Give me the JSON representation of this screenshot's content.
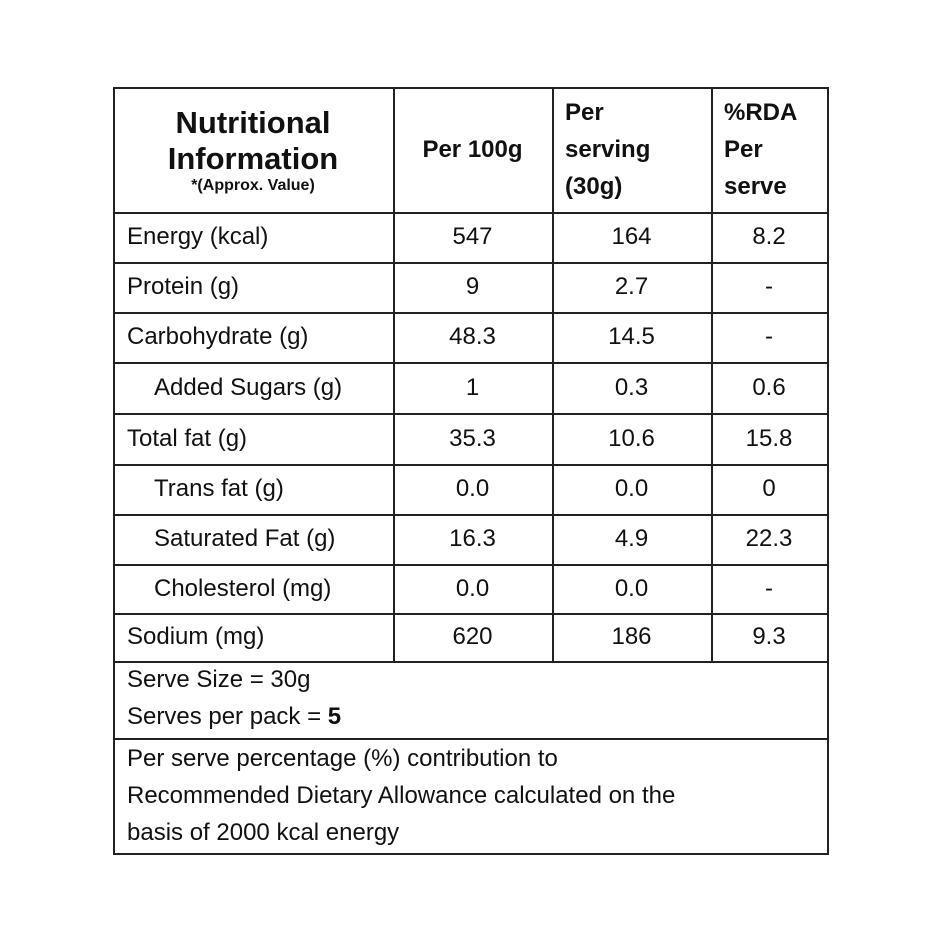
{
  "table": {
    "header": {
      "title": "Nutritional Information",
      "note": "*(Approx. Value)",
      "columns": [
        [
          "Per 100g"
        ],
        [
          "Per",
          "serving",
          "(30g)"
        ],
        [
          "%RDA",
          "Per",
          "serve"
        ]
      ]
    },
    "rows": [
      {
        "label": "Energy (kcal)",
        "cells": [
          "547",
          "164",
          "8.2"
        ]
      },
      {
        "label": "Protein (g)",
        "cells": [
          "9",
          "2.7",
          "-"
        ]
      },
      {
        "label": "Carbohydrate (g)",
        "cells": [
          "48.3",
          "14.5",
          "-"
        ]
      },
      {
        "label": "Added Sugars (g)",
        "cells": [
          "1",
          "0.3",
          "0.6"
        ],
        "sub": true
      },
      {
        "label": "Total fat (g)",
        "cells": [
          "35.3",
          "10.6",
          "15.8"
        ]
      },
      {
        "label": "Trans fat (g)",
        "cells": [
          "0.0",
          "0.0",
          "0"
        ],
        "sub": true
      },
      {
        "label": "Saturated Fat (g)",
        "cells": [
          "16.3",
          "4.9",
          "22.3"
        ],
        "sub": true
      },
      {
        "label": "Cholesterol (mg)",
        "cells": [
          "0.0",
          "0.0",
          "-"
        ],
        "sub": true
      },
      {
        "label": "Sodium (mg)",
        "cells": [
          "620",
          "186",
          "9.3"
        ]
      }
    ],
    "serve_size": "Serve Size = 30g",
    "serves_per_pack_label": "Serves per pack =",
    "serves_per_pack": "5",
    "footnote": [
      "Per serve percentage (%) contribution to",
      "Recommended Dietary Allowance calculated on the",
      "basis of 2000  kcal energy"
    ]
  }
}
